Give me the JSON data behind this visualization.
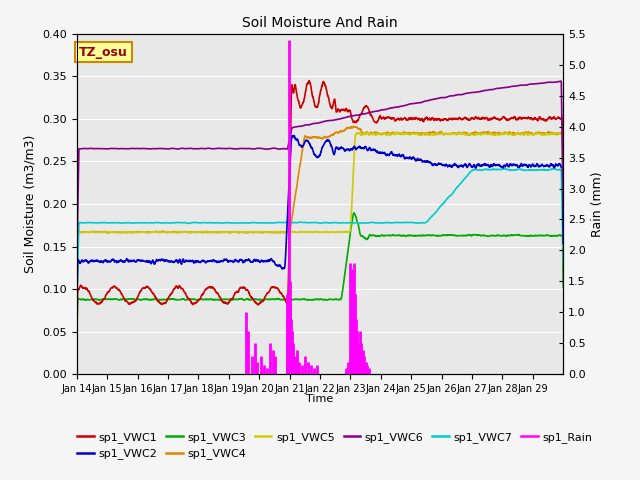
{
  "title": "Soil Moisture And Rain",
  "xlabel": "Time",
  "ylabel_left": "Soil Moisture (m3/m3)",
  "ylabel_right": "Rain (mm)",
  "ylim_left": [
    0.0,
    0.4
  ],
  "ylim_right": [
    0.0,
    5.5
  ],
  "yticks_left": [
    0.0,
    0.05,
    0.1,
    0.15,
    0.2,
    0.25,
    0.3,
    0.35,
    0.4
  ],
  "yticks_right": [
    0.0,
    0.5,
    1.0,
    1.5,
    2.0,
    2.5,
    3.0,
    3.5,
    4.0,
    4.5,
    5.0,
    5.5
  ],
  "xtick_labels": [
    "Jan 14",
    "Jan 15",
    "Jan 16",
    "Jan 17",
    "Jan 18",
    "Jan 19",
    "Jan 20",
    "Jan 21",
    "Jan 22",
    "Jan 23",
    "Jan 24",
    "Jan 25",
    "Jan 26",
    "Jan 27",
    "Jan 28",
    "Jan 29"
  ],
  "colors": {
    "VWC1": "#cc0000",
    "VWC2": "#0000cc",
    "VWC3": "#00aa00",
    "VWC4": "#dd8800",
    "VWC5": "#cccc00",
    "VWC6": "#880088",
    "VWC7": "#00cccc",
    "Rain": "#ff00ff"
  },
  "legend_labels": [
    "sp1_VWC1",
    "sp1_VWC2",
    "sp1_VWC3",
    "sp1_VWC4",
    "sp1_VWC5",
    "sp1_VWC6",
    "sp1_VWC7",
    "sp1_Rain"
  ],
  "annotation_text": "TZ_osu",
  "annotation_color": "#990000",
  "annotation_bg": "#ffff99",
  "annotation_border": "#cc8800",
  "bg_color": "#e8e8e8",
  "plot_bg": "#e8e8e8",
  "grid_color": "#ffffff",
  "figsize": [
    6.4,
    4.8
  ],
  "dpi": 100
}
